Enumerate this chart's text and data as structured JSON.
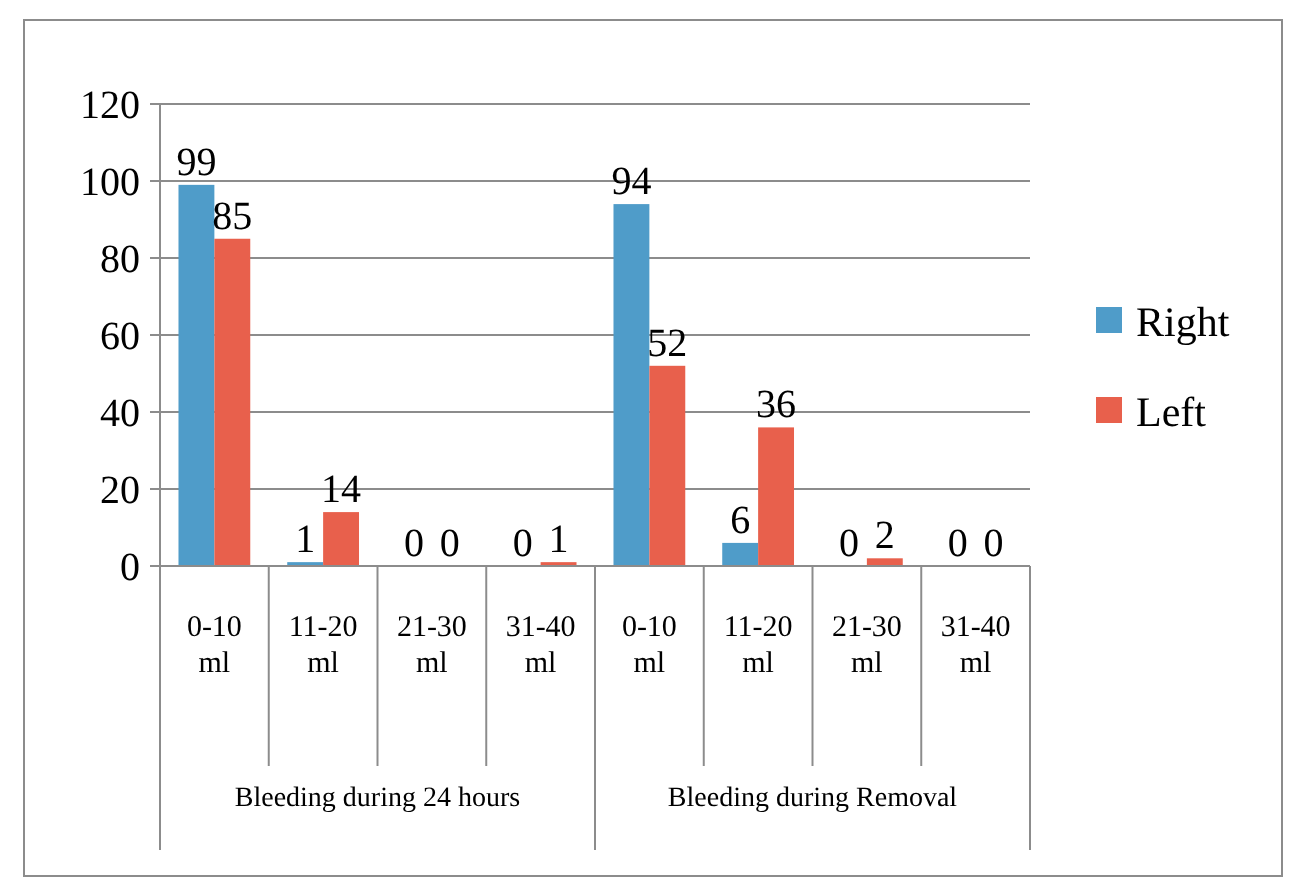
{
  "chart_data": {
    "type": "bar",
    "categories": [
      "0-10 ml",
      "11-20 ml",
      "21-30 ml",
      "31-40 ml",
      "0-10 ml",
      "11-20 ml",
      "21-30 ml",
      "31-40 ml"
    ],
    "series": [
      {
        "name": "Right",
        "color": "#4f9cc9",
        "values": [
          99,
          1,
          0,
          0,
          94,
          6,
          0,
          0
        ]
      },
      {
        "name": "Left",
        "color": "#e8604c",
        "values": [
          85,
          14,
          0,
          1,
          52,
          36,
          2,
          0
        ]
      }
    ],
    "ylim": [
      0,
      120
    ],
    "yticks": [
      0,
      20,
      40,
      60,
      80,
      100,
      120
    ],
    "grid": "y",
    "legend": "right",
    "data_labels": true,
    "annotations": [
      "Bleeding during 24 hours",
      "Bleeding during Removal"
    ]
  }
}
